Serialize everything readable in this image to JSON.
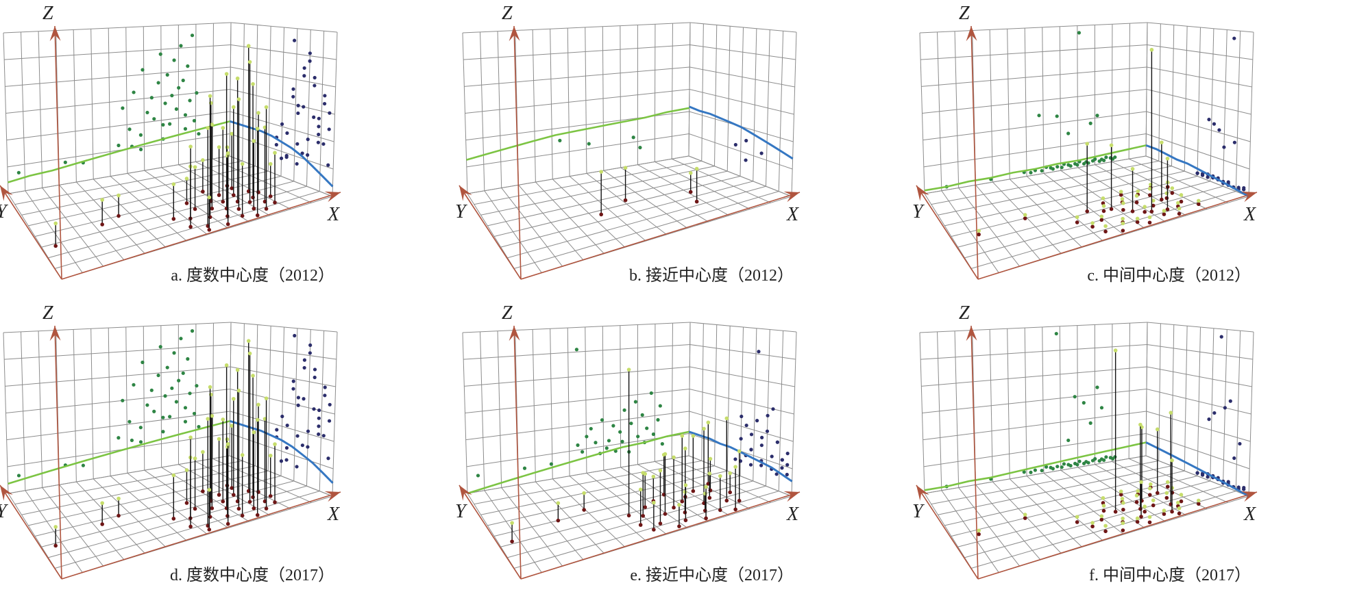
{
  "colors": {
    "grid": "#8c8c8c",
    "axis": "#b0553f",
    "xz_points": "#2e8544",
    "xz_trend": "#7cc443",
    "yz_points": "#2b2d6b",
    "yz_trend": "#3577c2",
    "tip": "#c6dd6b",
    "base": "#6e1616",
    "stem": "#111111"
  },
  "chart_data": [
    {
      "type": "scatter",
      "title": "a. 度数中心度（2012）",
      "xlabel": "X",
      "ylabel": "Y",
      "zlabel": "Z",
      "grid": true,
      "trend_xz": [
        0.07,
        0.09,
        0.1,
        0.12,
        0.14,
        0.16,
        0.18,
        0.2,
        0.22,
        0.24,
        0.26
      ],
      "trend_yz": [
        0.06,
        0.1,
        0.14,
        0.18,
        0.21,
        0.23,
        0.25,
        0.26,
        0.26,
        0.26,
        0.26
      ],
      "points": [
        [
          0.05,
          0.35,
          0.12
        ],
        [
          0.26,
          0.45,
          0.14
        ],
        [
          0.34,
          0.5,
          0.12
        ],
        [
          0.5,
          0.3,
          0.2
        ],
        [
          0.52,
          0.15,
          0.45
        ],
        [
          0.55,
          0.25,
          0.3
        ],
        [
          0.57,
          0.1,
          0.55
        ],
        [
          0.6,
          0.35,
          0.25
        ],
        [
          0.61,
          0.2,
          0.7
        ],
        [
          0.63,
          0.05,
          0.4
        ],
        [
          0.65,
          0.3,
          0.5
        ],
        [
          0.66,
          0.15,
          0.35
        ],
        [
          0.68,
          0.4,
          0.6
        ],
        [
          0.69,
          0.25,
          0.8
        ],
        [
          0.7,
          0.1,
          0.3
        ],
        [
          0.71,
          0.35,
          0.45
        ],
        [
          0.72,
          0.2,
          0.65
        ],
        [
          0.73,
          0.45,
          0.3
        ],
        [
          0.74,
          0.05,
          0.5
        ],
        [
          0.75,
          0.3,
          0.75
        ],
        [
          0.76,
          0.15,
          0.4
        ],
        [
          0.77,
          0.4,
          0.55
        ],
        [
          0.78,
          0.25,
          0.85
        ],
        [
          0.79,
          0.1,
          0.6
        ],
        [
          0.8,
          0.5,
          0.35
        ],
        [
          0.81,
          0.3,
          0.7
        ],
        [
          0.82,
          0.2,
          0.45
        ],
        [
          0.83,
          0.4,
          0.92
        ],
        [
          0.84,
          0.15,
          0.3
        ],
        [
          0.85,
          0.35,
          0.5
        ],
        [
          0.86,
          0.25,
          0.2
        ],
        [
          0.6,
          0.45,
          0.15
        ],
        [
          0.7,
          0.55,
          0.2
        ],
        [
          0.8,
          0.55,
          0.25
        ],
        [
          0.56,
          0.05,
          0.18
        ]
      ]
    },
    {
      "type": "scatter",
      "title": "b. 接近中心度（2012）",
      "xlabel": "X",
      "ylabel": "Y",
      "zlabel": "Z",
      "grid": true,
      "trend_xz": [
        0.21,
        0.23,
        0.25,
        0.27,
        0.29,
        0.3,
        0.31,
        0.32,
        0.33,
        0.35,
        0.36
      ],
      "trend_yz": [
        0.23,
        0.25,
        0.27,
        0.29,
        0.31,
        0.33,
        0.34,
        0.35,
        0.36,
        0.36,
        0.37
      ],
      "points": [
        [
          0.42,
          0.45,
          0.25
        ],
        [
          0.55,
          0.55,
          0.2
        ],
        [
          0.75,
          0.3,
          0.2
        ],
        [
          0.78,
          0.45,
          0.12
        ]
      ]
    },
    {
      "type": "scatter",
      "title": "c. 中间中心度（2012）",
      "xlabel": "X",
      "ylabel": "Y",
      "zlabel": "Z",
      "grid": true,
      "trend_xz": [
        0.02,
        0.02,
        0.03,
        0.03,
        0.04,
        0.04,
        0.05,
        0.05,
        0.06,
        0.07,
        0.08
      ],
      "trend_yz": [
        0.0,
        0.01,
        0.02,
        0.03,
        0.04,
        0.05,
        0.06,
        0.06,
        0.07,
        0.08,
        0.08
      ],
      "points": [
        [
          0.7,
          0.18,
          0.95
        ],
        [
          0.52,
          0.4,
          0.4
        ],
        [
          0.6,
          0.35,
          0.38
        ],
        [
          0.78,
          0.3,
          0.35
        ],
        [
          0.75,
          0.15,
          0.3
        ],
        [
          0.65,
          0.25,
          0.25
        ],
        [
          0.1,
          0.45,
          0.02
        ],
        [
          0.3,
          0.5,
          0.02
        ],
        [
          0.45,
          0.3,
          0.03
        ],
        [
          0.48,
          0.2,
          0.02
        ],
        [
          0.5,
          0.1,
          0.03
        ],
        [
          0.53,
          0.25,
          0.02
        ],
        [
          0.55,
          0.05,
          0.04
        ],
        [
          0.57,
          0.35,
          0.03
        ],
        [
          0.58,
          0.15,
          0.02
        ],
        [
          0.6,
          0.45,
          0.03
        ],
        [
          0.62,
          0.1,
          0.02
        ],
        [
          0.63,
          0.3,
          0.04
        ],
        [
          0.65,
          0.05,
          0.03
        ],
        [
          0.66,
          0.4,
          0.02
        ],
        [
          0.68,
          0.2,
          0.03
        ],
        [
          0.69,
          0.5,
          0.02
        ],
        [
          0.7,
          0.35,
          0.04
        ],
        [
          0.72,
          0.1,
          0.02
        ],
        [
          0.73,
          0.25,
          0.03
        ],
        [
          0.74,
          0.45,
          0.02
        ],
        [
          0.76,
          0.05,
          0.03
        ],
        [
          0.77,
          0.4,
          0.04
        ],
        [
          0.79,
          0.15,
          0.02
        ],
        [
          0.8,
          0.3,
          0.03
        ],
        [
          0.81,
          0.5,
          0.02
        ],
        [
          0.82,
          0.2,
          0.04
        ],
        [
          0.84,
          0.35,
          0.03
        ],
        [
          0.85,
          0.1,
          0.02
        ],
        [
          0.86,
          0.45,
          0.03
        ]
      ]
    },
    {
      "type": "scatter",
      "title": "d. 度数中心度（2017）",
      "xlabel": "X",
      "ylabel": "Y",
      "zlabel": "Z",
      "grid": true,
      "trend_xz": [
        0.06,
        0.08,
        0.1,
        0.12,
        0.14,
        0.16,
        0.18,
        0.2,
        0.22,
        0.24,
        0.26
      ],
      "trend_yz": [
        0.08,
        0.12,
        0.16,
        0.19,
        0.22,
        0.24,
        0.25,
        0.26,
        0.26,
        0.26,
        0.26
      ],
      "points": [
        [
          0.05,
          0.35,
          0.1
        ],
        [
          0.26,
          0.45,
          0.12
        ],
        [
          0.34,
          0.5,
          0.1
        ],
        [
          0.5,
          0.3,
          0.25
        ],
        [
          0.52,
          0.15,
          0.5
        ],
        [
          0.55,
          0.25,
          0.35
        ],
        [
          0.57,
          0.1,
          0.6
        ],
        [
          0.6,
          0.35,
          0.3
        ],
        [
          0.61,
          0.2,
          0.75
        ],
        [
          0.63,
          0.05,
          0.45
        ],
        [
          0.65,
          0.3,
          0.55
        ],
        [
          0.66,
          0.15,
          0.4
        ],
        [
          0.68,
          0.4,
          0.65
        ],
        [
          0.69,
          0.25,
          0.85
        ],
        [
          0.7,
          0.1,
          0.35
        ],
        [
          0.71,
          0.35,
          0.5
        ],
        [
          0.72,
          0.2,
          0.7
        ],
        [
          0.73,
          0.45,
          0.35
        ],
        [
          0.74,
          0.05,
          0.55
        ],
        [
          0.75,
          0.3,
          0.8
        ],
        [
          0.76,
          0.15,
          0.45
        ],
        [
          0.77,
          0.4,
          0.6
        ],
        [
          0.78,
          0.25,
          0.9
        ],
        [
          0.79,
          0.1,
          0.65
        ],
        [
          0.8,
          0.5,
          0.4
        ],
        [
          0.81,
          0.3,
          0.75
        ],
        [
          0.82,
          0.2,
          0.5
        ],
        [
          0.83,
          0.4,
          0.95
        ],
        [
          0.84,
          0.15,
          0.35
        ],
        [
          0.85,
          0.35,
          0.55
        ],
        [
          0.86,
          0.25,
          0.25
        ],
        [
          0.6,
          0.45,
          0.2
        ],
        [
          0.7,
          0.55,
          0.25
        ],
        [
          0.8,
          0.55,
          0.3
        ],
        [
          0.56,
          0.05,
          0.22
        ]
      ]
    },
    {
      "type": "scatter",
      "title": "e. 接近中心度（2017）",
      "xlabel": "X",
      "ylabel": "Y",
      "zlabel": "Z",
      "grid": true,
      "trend_xz": [
        0.0,
        0.02,
        0.04,
        0.06,
        0.08,
        0.1,
        0.12,
        0.14,
        0.15,
        0.17,
        0.18
      ],
      "trend_yz": [
        0.09,
        0.11,
        0.13,
        0.14,
        0.15,
        0.16,
        0.17,
        0.17,
        0.18,
        0.18,
        0.18
      ],
      "points": [
        [
          0.05,
          0.4,
          0.1
        ],
        [
          0.26,
          0.5,
          0.1
        ],
        [
          0.38,
          0.55,
          0.1
        ],
        [
          0.5,
          0.35,
          0.85
        ],
        [
          0.5,
          0.2,
          0.2
        ],
        [
          0.52,
          0.1,
          0.15
        ],
        [
          0.54,
          0.3,
          0.25
        ],
        [
          0.56,
          0.15,
          0.3
        ],
        [
          0.58,
          0.4,
          0.2
        ],
        [
          0.6,
          0.05,
          0.12
        ],
        [
          0.61,
          0.25,
          0.35
        ],
        [
          0.63,
          0.45,
          0.15
        ],
        [
          0.64,
          0.1,
          0.2
        ],
        [
          0.66,
          0.3,
          0.3
        ],
        [
          0.67,
          0.2,
          0.12
        ],
        [
          0.69,
          0.5,
          0.25
        ],
        [
          0.7,
          0.05,
          0.18
        ],
        [
          0.71,
          0.35,
          0.4
        ],
        [
          0.73,
          0.15,
          0.1
        ],
        [
          0.74,
          0.4,
          0.3
        ],
        [
          0.76,
          0.25,
          0.45
        ],
        [
          0.77,
          0.1,
          0.2
        ],
        [
          0.79,
          0.45,
          0.35
        ],
        [
          0.8,
          0.3,
          0.15
        ],
        [
          0.81,
          0.05,
          0.25
        ],
        [
          0.83,
          0.2,
          0.5
        ],
        [
          0.84,
          0.4,
          0.2
        ],
        [
          0.86,
          0.15,
          0.3
        ],
        [
          0.87,
          0.5,
          0.4
        ],
        [
          0.88,
          0.3,
          0.12
        ]
      ]
    },
    {
      "type": "scatter",
      "title": "f. 中间中心度（2017）",
      "xlabel": "X",
      "ylabel": "Y",
      "zlabel": "Z",
      "grid": true,
      "trend_xz": [
        0.02,
        0.02,
        0.03,
        0.03,
        0.04,
        0.05,
        0.06,
        0.07,
        0.08,
        0.09,
        0.1
      ],
      "trend_yz": [
        0.0,
        0.01,
        0.02,
        0.03,
        0.04,
        0.05,
        0.06,
        0.07,
        0.08,
        0.09,
        0.1
      ],
      "points": [
        [
          0.6,
          0.3,
          0.95
        ],
        [
          0.68,
          0.25,
          0.5
        ],
        [
          0.72,
          0.35,
          0.45
        ],
        [
          0.78,
          0.2,
          0.55
        ],
        [
          0.8,
          0.4,
          0.4
        ],
        [
          0.75,
          0.1,
          0.3
        ],
        [
          0.65,
          0.15,
          0.2
        ],
        [
          0.1,
          0.45,
          0.02
        ],
        [
          0.3,
          0.5,
          0.02
        ],
        [
          0.45,
          0.3,
          0.03
        ],
        [
          0.48,
          0.2,
          0.02
        ],
        [
          0.5,
          0.1,
          0.03
        ],
        [
          0.53,
          0.25,
          0.02
        ],
        [
          0.55,
          0.05,
          0.04
        ],
        [
          0.57,
          0.35,
          0.03
        ],
        [
          0.58,
          0.15,
          0.02
        ],
        [
          0.6,
          0.45,
          0.03
        ],
        [
          0.62,
          0.1,
          0.02
        ],
        [
          0.63,
          0.3,
          0.04
        ],
        [
          0.65,
          0.05,
          0.03
        ],
        [
          0.66,
          0.4,
          0.02
        ],
        [
          0.68,
          0.2,
          0.03
        ],
        [
          0.69,
          0.5,
          0.02
        ],
        [
          0.7,
          0.35,
          0.04
        ],
        [
          0.72,
          0.1,
          0.02
        ],
        [
          0.73,
          0.25,
          0.03
        ],
        [
          0.74,
          0.45,
          0.02
        ],
        [
          0.76,
          0.05,
          0.03
        ],
        [
          0.77,
          0.4,
          0.04
        ],
        [
          0.79,
          0.15,
          0.02
        ],
        [
          0.8,
          0.3,
          0.03
        ],
        [
          0.81,
          0.5,
          0.02
        ],
        [
          0.82,
          0.2,
          0.04
        ],
        [
          0.84,
          0.35,
          0.03
        ],
        [
          0.85,
          0.1,
          0.02
        ],
        [
          0.86,
          0.45,
          0.03
        ]
      ]
    }
  ]
}
